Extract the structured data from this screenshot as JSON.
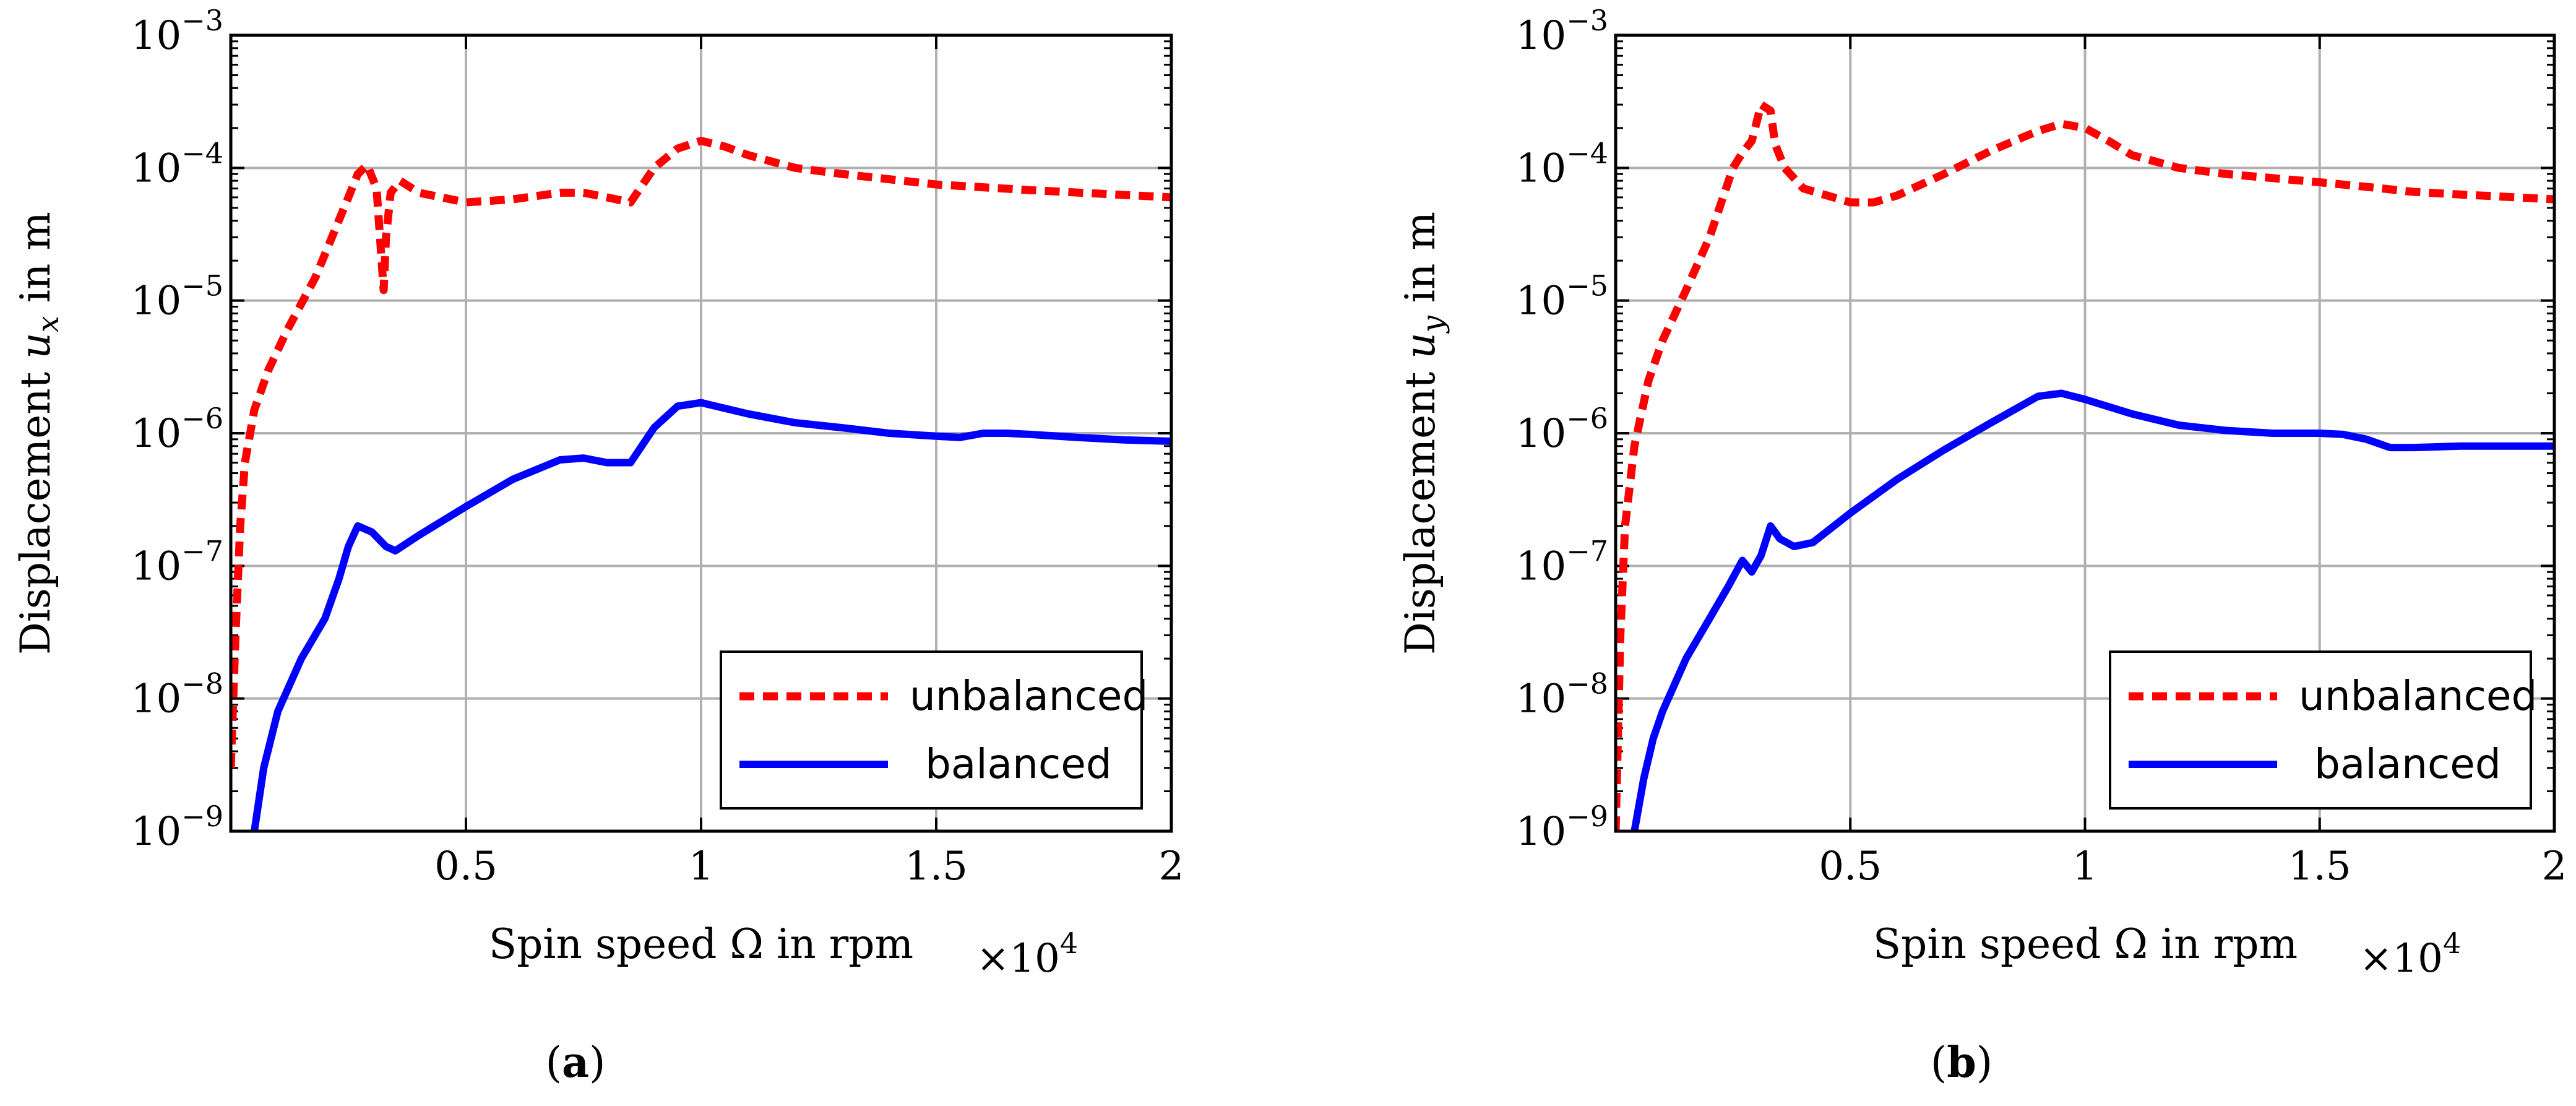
{
  "chart_data": [
    {
      "type": "line",
      "caption": "a",
      "xlabel": "Spin speed Ω in rpm",
      "ylabel_prefix": "Displacement ",
      "ylabel_var": "u",
      "ylabel_sub": "x",
      "ylabel_suffix": " in m",
      "x_multiplier": "×10",
      "x_multiplier_exp": "4",
      "xlim": [
        0,
        2
      ],
      "ylim_exp": [
        -9,
        -3
      ],
      "x_ticks": [
        "0.5",
        "1",
        "1.5",
        "2"
      ],
      "y_ticks": [
        {
          "base": "10",
          "exp": "−9"
        },
        {
          "base": "10",
          "exp": "−8"
        },
        {
          "base": "10",
          "exp": "−7"
        },
        {
          "base": "10",
          "exp": "−6"
        },
        {
          "base": "10",
          "exp": "−5"
        },
        {
          "base": "10",
          "exp": "−4"
        },
        {
          "base": "10",
          "exp": "−3"
        }
      ],
      "legend": {
        "position": "bottom-right",
        "entries": [
          "unbalanced",
          "balanced"
        ]
      },
      "series": [
        {
          "name": "unbalanced",
          "color": "#ff0000",
          "style": "dashed",
          "x": [
            0.0,
            0.01,
            0.02,
            0.03,
            0.05,
            0.08,
            0.12,
            0.18,
            0.25,
            0.27,
            0.29,
            0.31,
            0.325,
            0.33,
            0.34,
            0.36,
            0.4,
            0.5,
            0.6,
            0.7,
            0.75,
            0.8,
            0.85,
            0.9,
            0.95,
            1.0,
            1.05,
            1.1,
            1.2,
            1.3,
            1.5,
            1.7,
            2.0
          ],
          "y": [
            3e-09,
            3e-08,
            2e-07,
            6e-07,
            1.5e-06,
            3e-06,
            6e-06,
            1.5e-05,
            6e-05,
            9e-05,
            0.000105,
            7e-05,
            1.2e-05,
            3e-05,
            6.5e-05,
            8e-05,
            6.5e-05,
            5.5e-05,
            5.8e-05,
            6.5e-05,
            6.5e-05,
            6e-05,
            5.5e-05,
            0.0001,
            0.00014,
            0.00016,
            0.000145,
            0.000125,
            0.0001,
            9e-05,
            7.5e-05,
            6.8e-05,
            6e-05
          ]
        },
        {
          "name": "balanced",
          "color": "#0000ff",
          "style": "solid",
          "x": [
            0.05,
            0.07,
            0.1,
            0.15,
            0.2,
            0.23,
            0.25,
            0.27,
            0.3,
            0.33,
            0.35,
            0.4,
            0.5,
            0.6,
            0.7,
            0.75,
            0.8,
            0.85,
            0.9,
            0.95,
            1.0,
            1.1,
            1.2,
            1.3,
            1.4,
            1.5,
            1.55,
            1.6,
            1.65,
            1.7,
            1.8,
            1.9,
            2.0
          ],
          "y": [
            1e-09,
            3e-09,
            8e-09,
            2e-08,
            4e-08,
            8e-08,
            1.4e-07,
            2e-07,
            1.8e-07,
            1.4e-07,
            1.3e-07,
            1.7e-07,
            2.8e-07,
            4.5e-07,
            6.3e-07,
            6.5e-07,
            6e-07,
            6e-07,
            1.1e-06,
            1.6e-06,
            1.7e-06,
            1.4e-06,
            1.2e-06,
            1.1e-06,
            1e-06,
            9.5e-07,
            9.3e-07,
            1e-06,
            1e-06,
            9.8e-07,
            9.3e-07,
            8.9e-07,
            8.7e-07
          ]
        }
      ]
    },
    {
      "type": "line",
      "caption": "b",
      "xlabel": "Spin speed Ω in rpm",
      "ylabel_prefix": "Displacement ",
      "ylabel_var": "u",
      "ylabel_sub": "y",
      "ylabel_suffix": " in m",
      "x_multiplier": "×10",
      "x_multiplier_exp": "4",
      "xlim": [
        0,
        2
      ],
      "ylim_exp": [
        -9,
        -3
      ],
      "x_ticks": [
        "0.5",
        "1",
        "1.5",
        "2"
      ],
      "y_ticks": [
        {
          "base": "10",
          "exp": "−9"
        },
        {
          "base": "10",
          "exp": "−8"
        },
        {
          "base": "10",
          "exp": "−7"
        },
        {
          "base": "10",
          "exp": "−6"
        },
        {
          "base": "10",
          "exp": "−5"
        },
        {
          "base": "10",
          "exp": "−4"
        },
        {
          "base": "10",
          "exp": "−3"
        }
      ],
      "legend": {
        "position": "bottom-right",
        "entries": [
          "unbalanced",
          "balanced"
        ]
      },
      "series": [
        {
          "name": "unbalanced",
          "color": "#ff0000",
          "style": "dashed",
          "x": [
            0.0,
            0.01,
            0.02,
            0.04,
            0.07,
            0.1,
            0.15,
            0.2,
            0.25,
            0.27,
            0.29,
            0.31,
            0.33,
            0.34,
            0.36,
            0.4,
            0.5,
            0.55,
            0.6,
            0.7,
            0.8,
            0.9,
            0.95,
            1.0,
            1.05,
            1.1,
            1.2,
            1.3,
            1.5,
            1.6,
            1.7,
            1.8,
            2.0
          ],
          "y": [
            1e-09,
            3e-08,
            2e-07,
            8e-07,
            2.5e-06,
            5e-06,
            1.2e-05,
            3e-05,
            0.0001,
            0.00013,
            0.00016,
            0.0003,
            0.00027,
            0.00015,
            0.0001,
            7e-05,
            5.5e-05,
            5.5e-05,
            6.2e-05,
            9e-05,
            0.000135,
            0.00019,
            0.000215,
            0.0002,
            0.00016,
            0.000125,
            0.0001,
            9e-05,
            7.8e-05,
            7.2e-05,
            6.6e-05,
            6.3e-05,
            5.8e-05
          ]
        },
        {
          "name": "balanced",
          "color": "#0000ff",
          "style": "solid",
          "x": [
            0.04,
            0.06,
            0.08,
            0.1,
            0.15,
            0.2,
            0.24,
            0.27,
            0.29,
            0.31,
            0.33,
            0.35,
            0.38,
            0.42,
            0.5,
            0.6,
            0.7,
            0.8,
            0.9,
            0.95,
            1.0,
            1.1,
            1.2,
            1.3,
            1.4,
            1.5,
            1.55,
            1.6,
            1.65,
            1.7,
            1.8,
            1.9,
            2.0
          ],
          "y": [
            1e-09,
            2.5e-09,
            5e-09,
            8e-09,
            2e-08,
            4e-08,
            7e-08,
            1.1e-07,
            9e-08,
            1.2e-07,
            2e-07,
            1.6e-07,
            1.4e-07,
            1.5e-07,
            2.5e-07,
            4.5e-07,
            7.5e-07,
            1.2e-06,
            1.9e-06,
            2e-06,
            1.8e-06,
            1.4e-06,
            1.15e-06,
            1.05e-06,
            1e-06,
            1e-06,
            9.8e-07,
            9e-07,
            7.8e-07,
            7.8e-07,
            8e-07,
            8e-07,
            8e-07
          ]
        }
      ]
    }
  ]
}
